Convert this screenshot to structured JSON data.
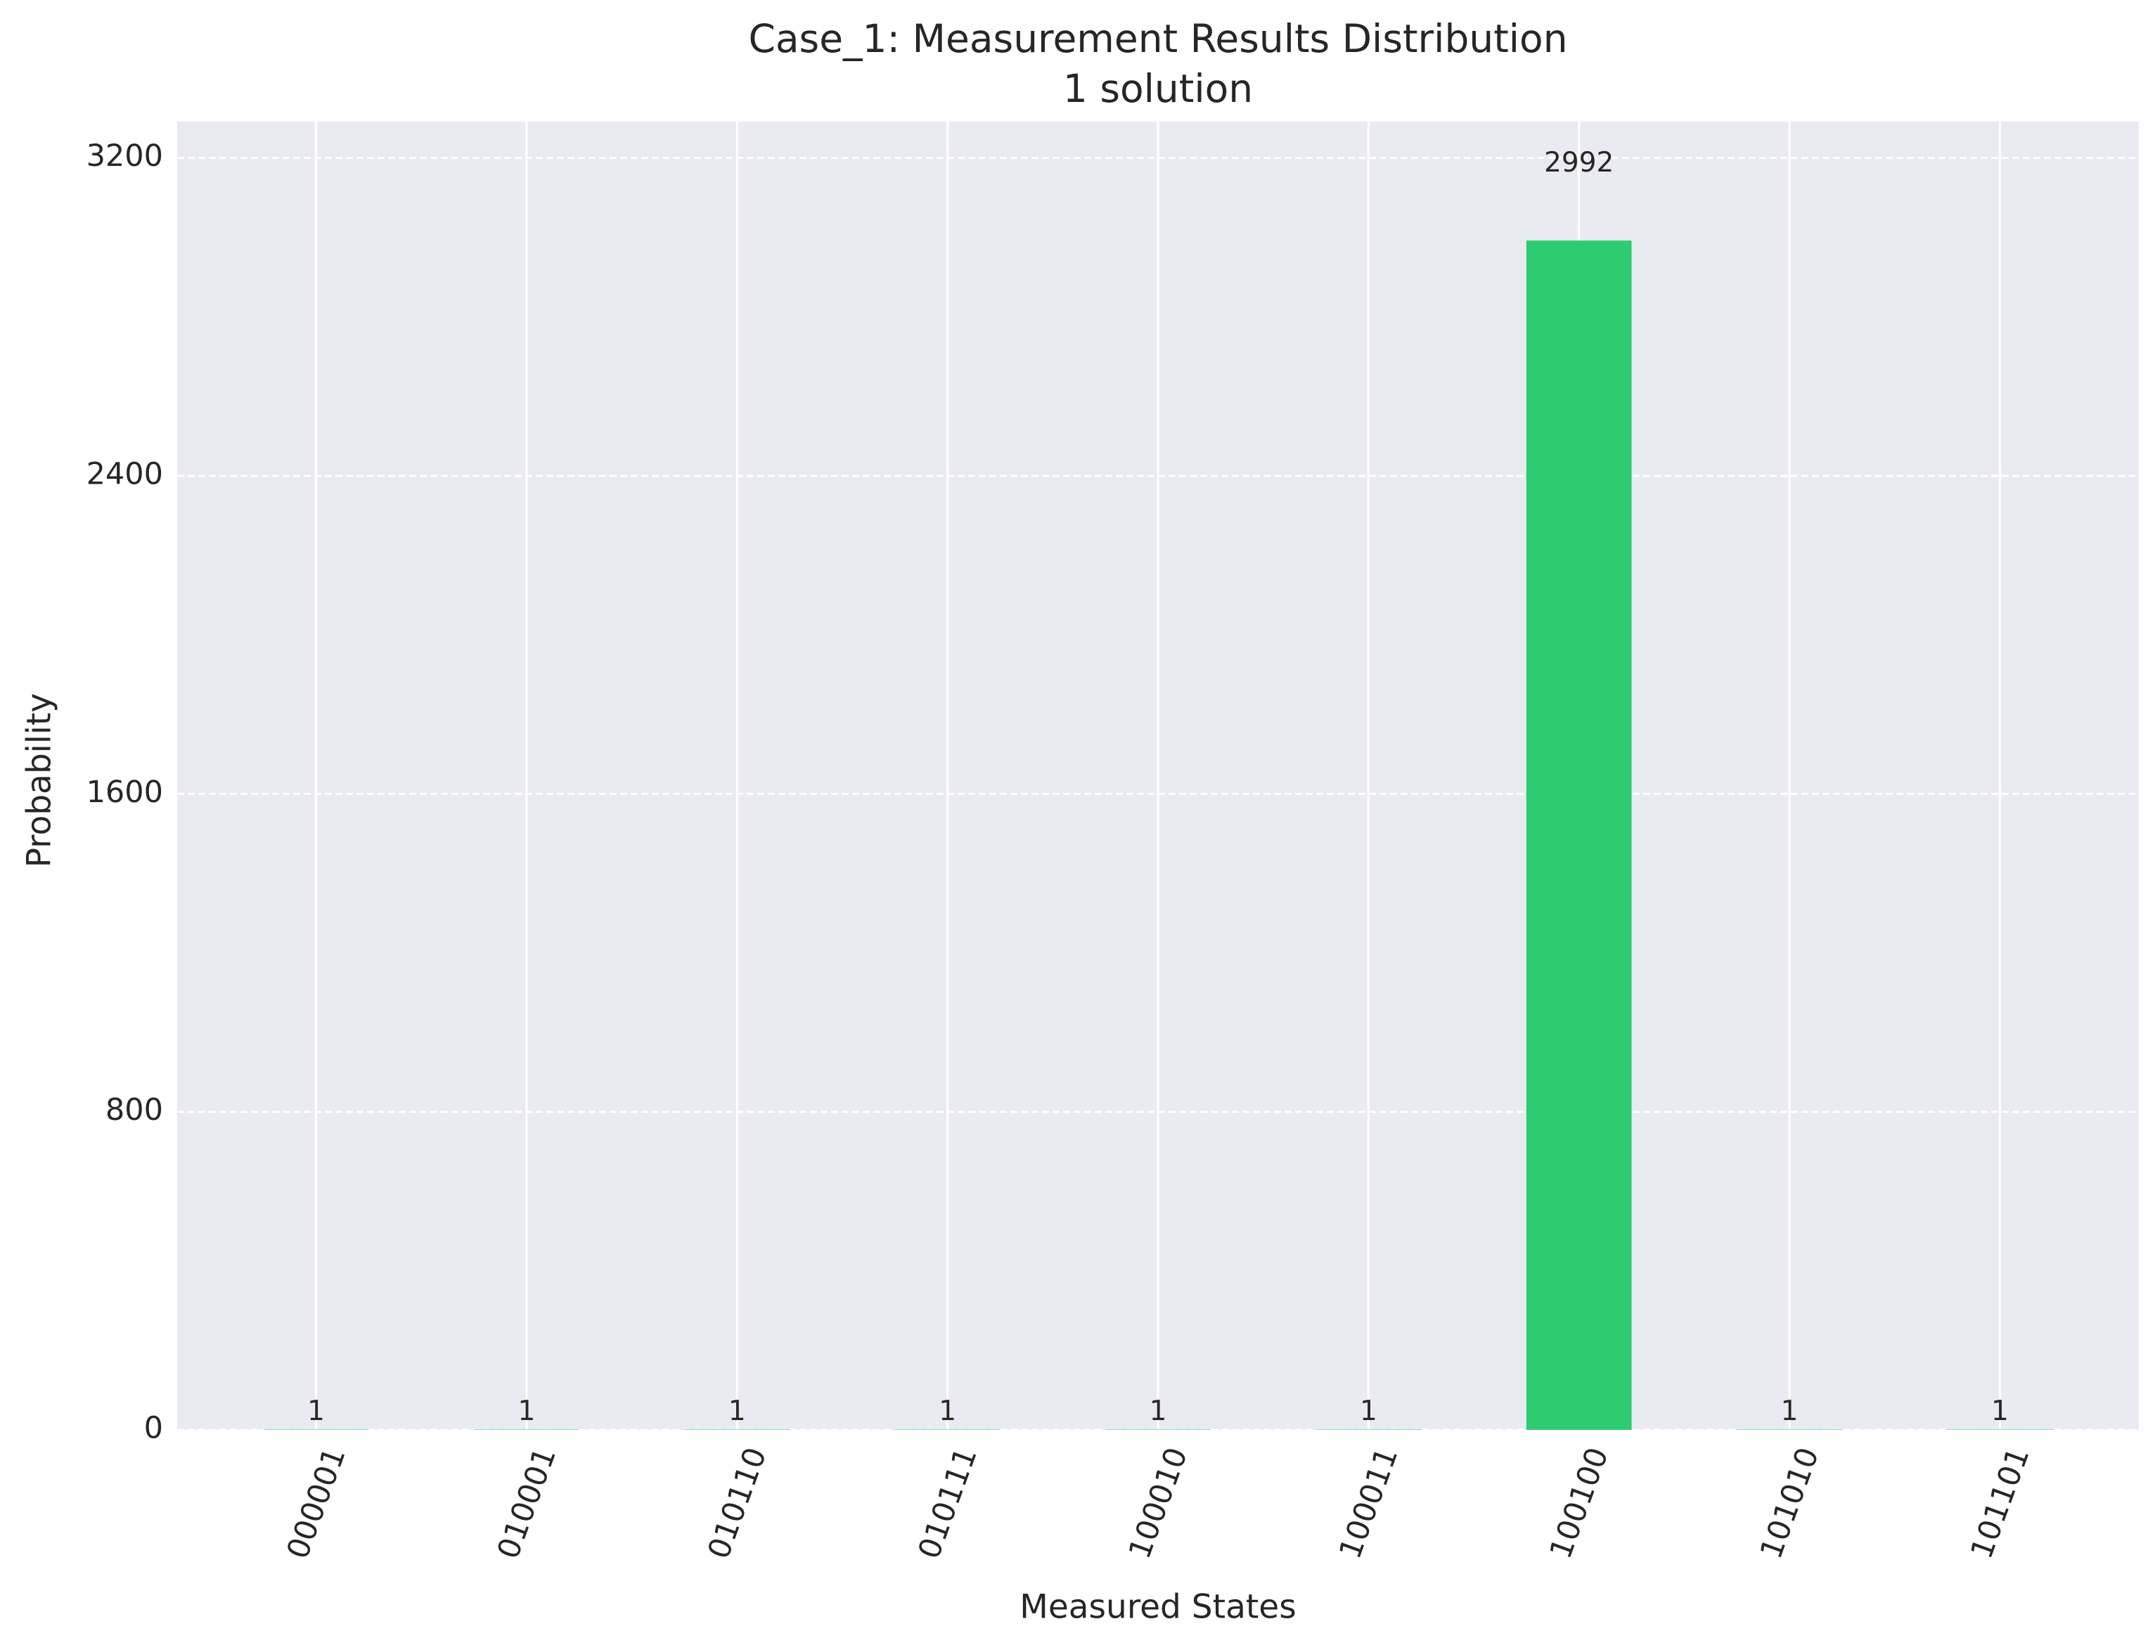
{
  "chart_data": {
    "type": "bar",
    "title": "Case_1: Measurement Results Distribution",
    "subtitle": "1 solution",
    "x_label": "Measured States",
    "y_label": "Probability",
    "categories": [
      "000001",
      "010001",
      "010110",
      "010111",
      "100010",
      "100011",
      "100100",
      "101010",
      "101101"
    ],
    "values": [
      1,
      1,
      1,
      1,
      1,
      1,
      2992,
      1,
      1
    ],
    "color": "#2ecc71",
    "ylim": [
      0,
      3291.2
    ],
    "yticks": [
      0,
      800,
      1600,
      2400,
      3200
    ],
    "grid": true
  }
}
